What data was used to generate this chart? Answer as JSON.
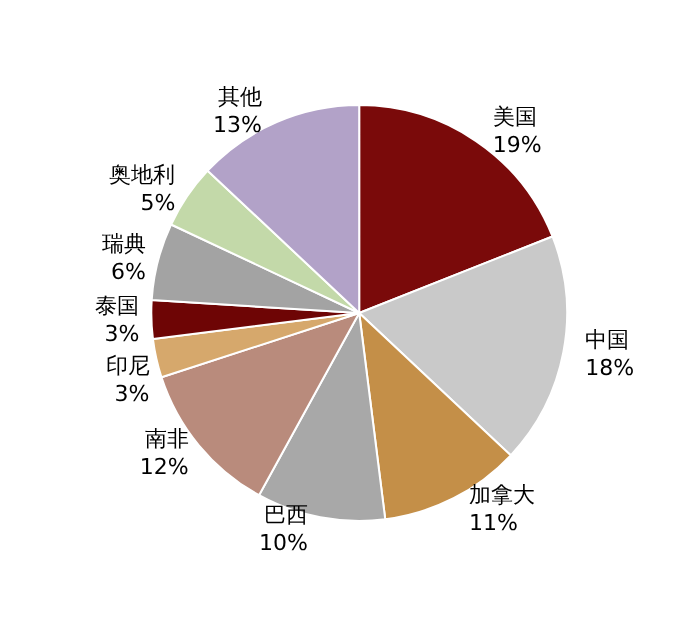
{
  "chart_data": {
    "type": "pie",
    "categories": [
      "美国",
      "中国",
      "加拿大",
      "巴西",
      "南非",
      "印尼",
      "泰国",
      "瑞典",
      "奥地利",
      "其他"
    ],
    "values": [
      19,
      18,
      11,
      10,
      12,
      3,
      3,
      6,
      5,
      13
    ],
    "colors": [
      "#7a0a0a",
      "#c9c9c9",
      "#c48f48",
      "#a8a8a8",
      "#b98b7c",
      "#d6a86c",
      "#6e0505",
      "#a3a3a3",
      "#c3d9a9",
      "#b2a2c8"
    ],
    "value_labels": [
      "19%",
      "18%",
      "11%",
      "10%",
      "12%",
      "3%",
      "3%",
      "6%",
      "5%",
      "13%"
    ],
    "legend": false
  }
}
